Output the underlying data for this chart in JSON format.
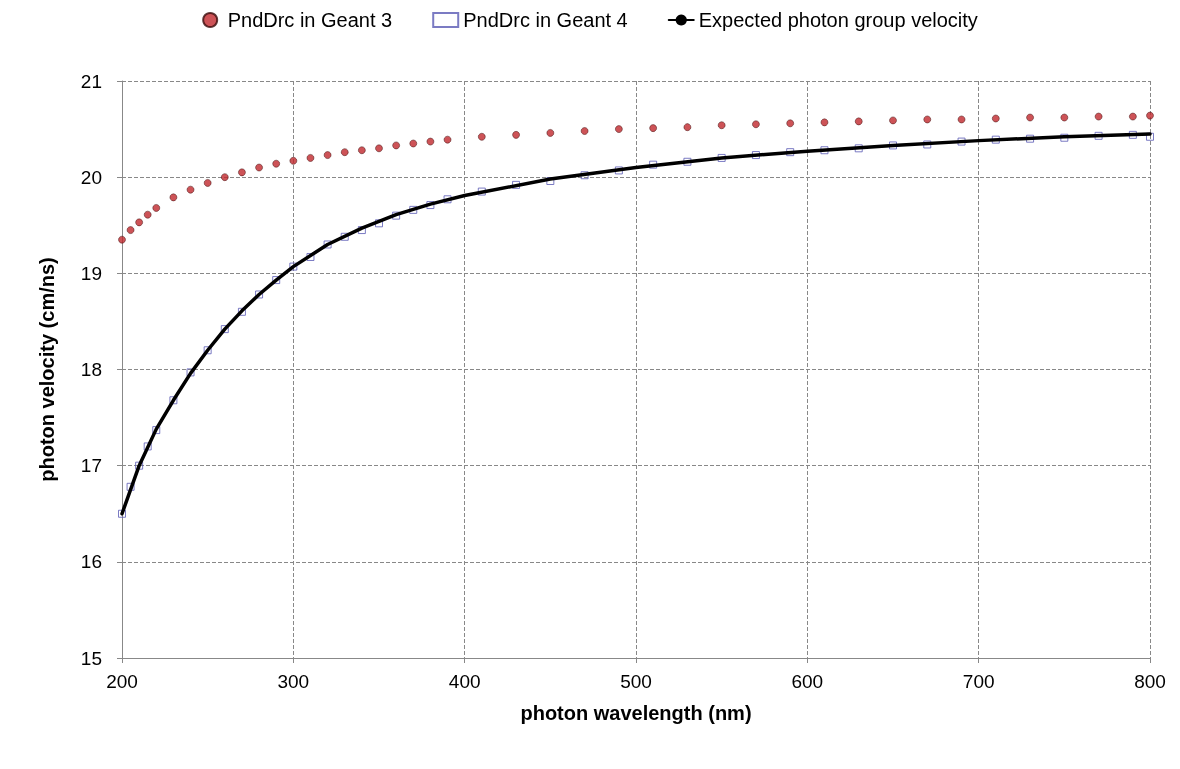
{
  "chart_data": {
    "type": "scatter",
    "xlabel": "photon wavelength (nm)",
    "ylabel": "photon velocity (cm/ns)",
    "xlim": [
      200,
      800
    ],
    "xticks": [
      200,
      300,
      400,
      500,
      600,
      700,
      800
    ],
    "ylim": [
      15,
      21
    ],
    "yticks": [
      15,
      16,
      17,
      18,
      19,
      20,
      21
    ],
    "grid": true,
    "legend": "top",
    "series": [
      {
        "name": "PndDrc in Geant 3",
        "color": "#c0282d",
        "marker": "circle",
        "x": [
          200,
          205,
          210,
          215,
          220,
          230,
          240,
          250,
          260,
          270,
          280,
          290,
          300,
          310,
          320,
          330,
          340,
          350,
          360,
          370,
          380,
          390,
          410,
          430,
          450,
          470,
          490,
          510,
          530,
          550,
          570,
          590,
          610,
          630,
          650,
          670,
          690,
          710,
          730,
          750,
          770,
          790,
          800
        ],
        "values": [
          19.35,
          19.45,
          19.53,
          19.61,
          19.68,
          19.79,
          19.87,
          19.94,
          20.0,
          20.05,
          20.1,
          20.14,
          20.17,
          20.2,
          20.23,
          20.26,
          20.28,
          20.3,
          20.33,
          20.35,
          20.37,
          20.39,
          20.42,
          20.44,
          20.46,
          20.48,
          20.5,
          20.51,
          20.52,
          20.54,
          20.55,
          20.56,
          20.57,
          20.58,
          20.59,
          20.6,
          20.6,
          20.61,
          20.62,
          20.62,
          20.63,
          20.63,
          20.64
        ]
      },
      {
        "name": "PndDrc in Geant 4",
        "color": "#5a5ab4",
        "marker": "square",
        "x": [
          200,
          205,
          210,
          215,
          220,
          230,
          240,
          250,
          260,
          270,
          280,
          290,
          300,
          310,
          320,
          330,
          340,
          350,
          360,
          370,
          380,
          390,
          410,
          430,
          450,
          470,
          490,
          510,
          530,
          550,
          570,
          590,
          610,
          630,
          650,
          670,
          690,
          710,
          730,
          750,
          770,
          790,
          800
        ],
        "values": [
          16.5,
          16.78,
          17.0,
          17.2,
          17.37,
          17.68,
          17.97,
          18.2,
          18.42,
          18.6,
          18.78,
          18.93,
          19.07,
          19.17,
          19.3,
          19.38,
          19.45,
          19.52,
          19.6,
          19.66,
          19.71,
          19.77,
          19.85,
          19.92,
          19.96,
          20.02,
          20.07,
          20.13,
          20.16,
          20.2,
          20.23,
          20.26,
          20.28,
          20.3,
          20.33,
          20.34,
          20.37,
          20.39,
          20.4,
          20.41,
          20.43,
          20.44,
          20.42
        ]
      },
      {
        "name": "Expected photon group velocity",
        "type": "line",
        "color": "#000000",
        "marker": "none",
        "x": [
          200,
          210,
          220,
          230,
          240,
          250,
          260,
          270,
          280,
          290,
          300,
          320,
          340,
          360,
          380,
          400,
          450,
          500,
          550,
          600,
          650,
          700,
          750,
          800
        ],
        "values": [
          16.5,
          17.0,
          17.38,
          17.68,
          17.96,
          18.2,
          18.42,
          18.61,
          18.78,
          18.93,
          19.07,
          19.3,
          19.47,
          19.61,
          19.72,
          19.81,
          19.98,
          20.1,
          20.2,
          20.27,
          20.33,
          20.38,
          20.42,
          20.45
        ]
      }
    ]
  }
}
